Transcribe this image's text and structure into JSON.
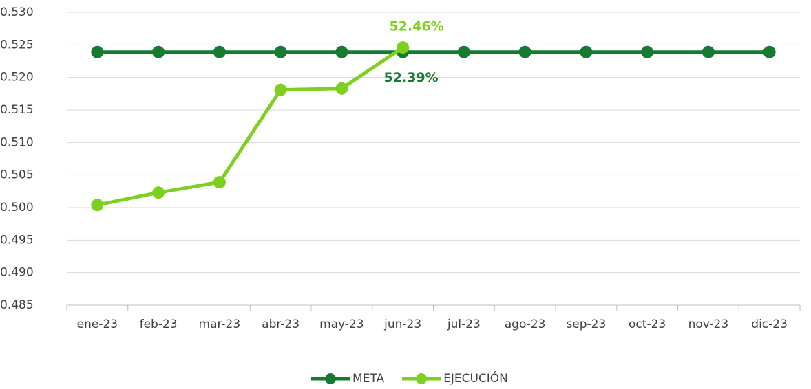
{
  "chart_data": {
    "type": "line",
    "categories": [
      "ene-23",
      "feb-23",
      "mar-23",
      "abr-23",
      "may-23",
      "jun-23",
      "jul-23",
      "ago-23",
      "sep-23",
      "oct-23",
      "nov-23",
      "dic-23"
    ],
    "series": [
      {
        "name": "META",
        "color": "#177a32",
        "values": [
          0.5239,
          0.5239,
          0.5239,
          0.5239,
          0.5239,
          0.5239,
          0.5239,
          0.5239,
          0.5239,
          0.5239,
          0.5239,
          0.5239
        ],
        "value_labels": [
          null,
          null,
          null,
          null,
          null,
          "52.39%",
          null,
          null,
          null,
          null,
          null,
          null
        ]
      },
      {
        "name": "EJECUCIÓN",
        "color": "#7dd01f",
        "values": [
          0.5004,
          0.5023,
          0.5039,
          0.5181,
          0.5183,
          0.5246,
          null,
          null,
          null,
          null,
          null,
          null
        ],
        "value_labels": [
          null,
          null,
          null,
          null,
          null,
          "52.46%",
          null,
          null,
          null,
          null,
          null,
          null
        ]
      }
    ],
    "ylim": [
      0.485,
      0.53
    ],
    "yticks": [
      {
        "value": 0.53,
        "label": "0.530"
      },
      0.525,
      {
        "value": 0.52,
        "label": "0.520"
      },
      0.515,
      {
        "value": 0.51,
        "label": "0.510"
      },
      0.505,
      {
        "value": 0.5,
        "label": "0.500"
      },
      0.495,
      {
        "value": 0.49,
        "label": "0.490"
      },
      0.485
    ],
    "grid": true,
    "legend": "bottom"
  }
}
